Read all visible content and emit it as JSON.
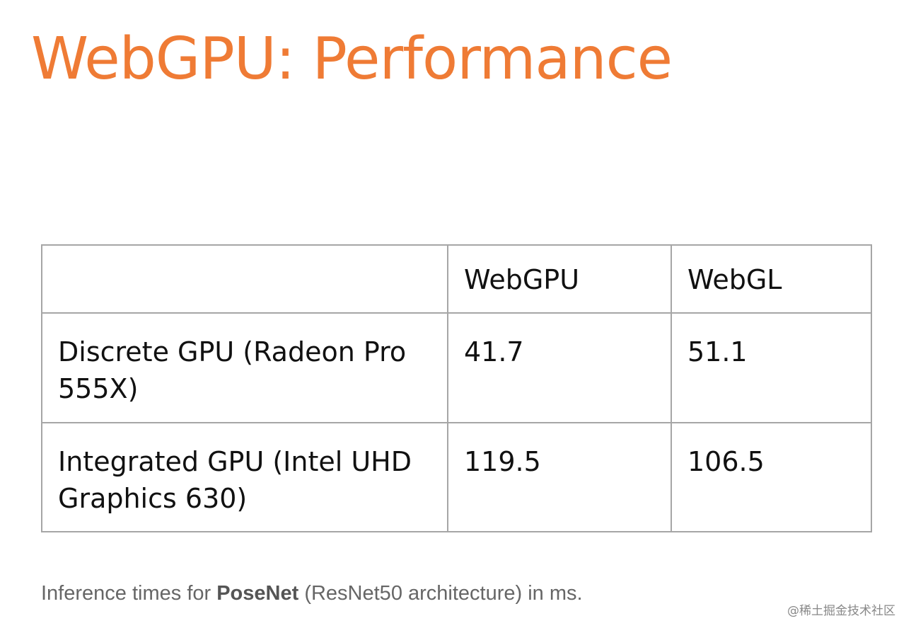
{
  "header": {
    "title": "WebGPU: Performance"
  },
  "table": {
    "columns": [
      "WebGPU",
      "WebGL"
    ],
    "rows": [
      {
        "label": "Discrete GPU (Radeon Pro 555X)",
        "values": [
          41.7,
          51.1
        ]
      },
      {
        "label": "Integrated GPU (Intel UHD Graphics 630)",
        "values": [
          119.5,
          106.5
        ]
      }
    ]
  },
  "caption": {
    "before": "Inference times for",
    "bold": "PoseNet",
    "after": "(ResNet50 architecture) in ms."
  },
  "watermark": "@稀土掘金技术社区"
}
